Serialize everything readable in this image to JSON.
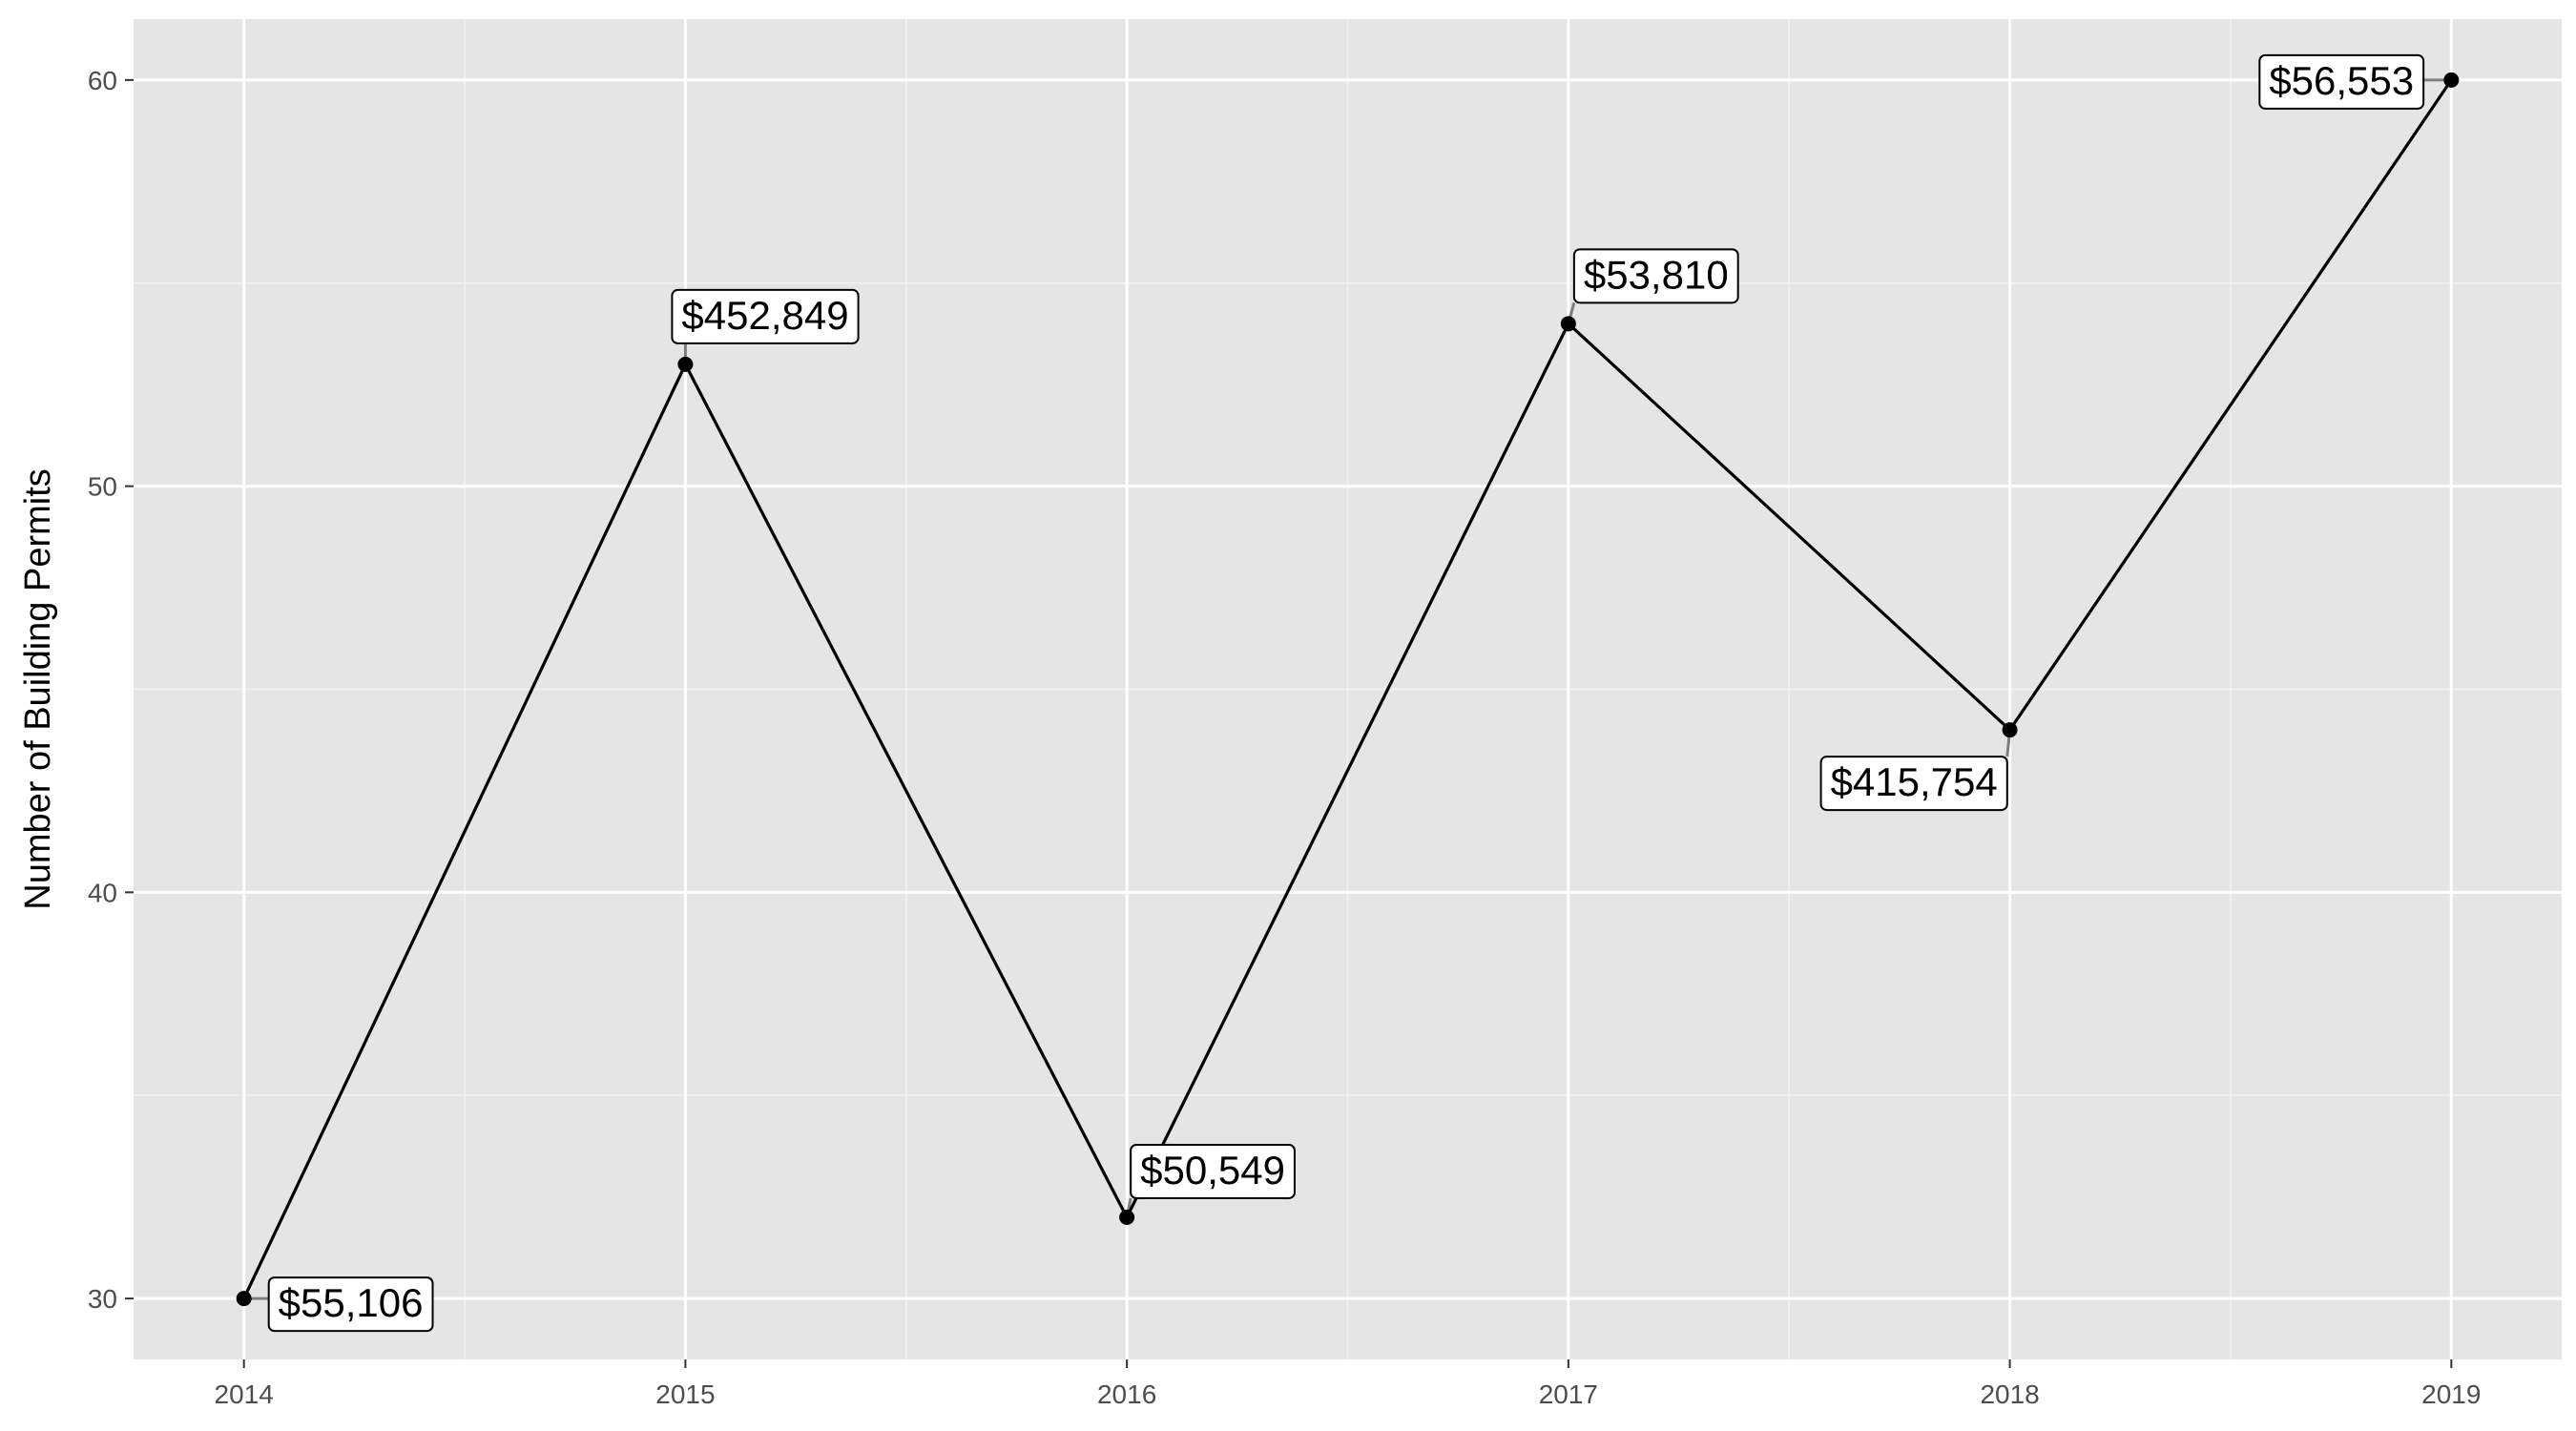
{
  "chart_data": {
    "type": "line",
    "title": "",
    "xlabel": "",
    "ylabel": "Number of Building Permits",
    "x": [
      2014,
      2015,
      2016,
      2017,
      2018,
      2019
    ],
    "x_tick_labels": [
      "2014",
      "2015",
      "2016",
      "2017",
      "2018",
      "2019"
    ],
    "series": [
      {
        "values": [
          30,
          53,
          32,
          54,
          44,
          60
        ]
      }
    ],
    "data_labels": [
      "$55,106",
      "$452,849",
      "$50,549",
      "$53,810",
      "$415,754",
      "$56,553"
    ],
    "xlim": [
      2013.75,
      2019.25
    ],
    "ylim": [
      28.5,
      61.5
    ],
    "y_ticks": [
      30,
      40,
      50,
      60
    ],
    "y_tick_labels": [
      "30",
      "40",
      "50",
      "60"
    ],
    "grid": true,
    "legend": "none",
    "colors": {
      "panel_background": "#e5e5e5",
      "grid_major": "#ffffff",
      "grid_minor": "#f2f2f2",
      "line": "#000000",
      "point": "#000000",
      "label_fill": "#ffffff",
      "label_border": "#000000",
      "segment": "#7f7f7f"
    }
  }
}
